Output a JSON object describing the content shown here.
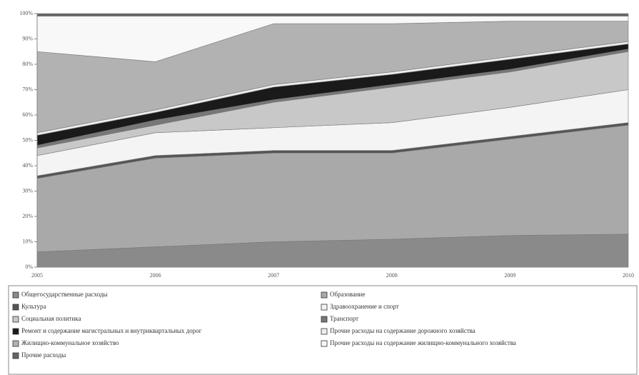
{
  "chart_data": {
    "type": "stacked-area-100",
    "categories": [
      "2005",
      "2006",
      "2007",
      "2008",
      "2009",
      "2010"
    ],
    "ylim": [
      0,
      100
    ],
    "yticks": [
      {
        "value": 0,
        "label": "0%"
      },
      {
        "value": 10,
        "label": "10%"
      },
      {
        "value": 20,
        "label": "20%"
      },
      {
        "value": 30,
        "label": "30%"
      },
      {
        "value": 40,
        "label": "40%"
      },
      {
        "value": 50,
        "label": "50%"
      },
      {
        "value": 60,
        "label": "60%"
      },
      {
        "value": 70,
        "label": "70%"
      },
      {
        "value": 80,
        "label": "80%"
      },
      {
        "value": 90,
        "label": "90%"
      },
      {
        "value": 100,
        "label": "100%"
      }
    ],
    "legend_position": "bottom",
    "series": [
      {
        "name": "Общегосударственные расходы",
        "color": "#8a8a8a",
        "values": [
          6,
          8,
          10,
          11,
          12.5,
          13
        ]
      },
      {
        "name": "Образование",
        "color": "#a9a9a9",
        "values": [
          29,
          35,
          35,
          34,
          38,
          43
        ]
      },
      {
        "name": "Культура",
        "color": "#555555",
        "values": [
          1,
          1,
          1,
          1,
          1,
          1
        ]
      },
      {
        "name": "Здравоохранение и спорт",
        "color": "#f4f4f4",
        "values": [
          8,
          9,
          9,
          11,
          11.5,
          13
        ]
      },
      {
        "name": "Социальная политика",
        "color": "#c8c8c8",
        "values": [
          3,
          3,
          10,
          14,
          14,
          15
        ]
      },
      {
        "name": "Транспорт",
        "color": "#777777",
        "values": [
          1,
          2,
          1,
          1,
          1,
          1
        ]
      },
      {
        "name": "Ремонт и содержание магистральных и внутриквартальных дорог",
        "color": "#1a1a1a",
        "values": [
          4,
          3,
          5,
          4,
          4,
          2
        ]
      },
      {
        "name": "Прочие расходы на содержание дорожного хозяйства",
        "color": "#eeeeee",
        "values": [
          1,
          1,
          1,
          1,
          1,
          1
        ]
      },
      {
        "name": "Жилищно-коммунальное хозяйство",
        "color": "#b2b2b2",
        "values": [
          32,
          19,
          24,
          19,
          14,
          8
        ]
      },
      {
        "name": "Прочие расходы на содержание жилищно-коммунального хозяйства",
        "color": "#f8f8f8",
        "values": [
          14,
          18,
          3,
          3,
          2,
          2
        ]
      },
      {
        "name": "Прочие расходы",
        "color": "#666666",
        "values": [
          1,
          1,
          1,
          1,
          1,
          1
        ]
      }
    ]
  }
}
